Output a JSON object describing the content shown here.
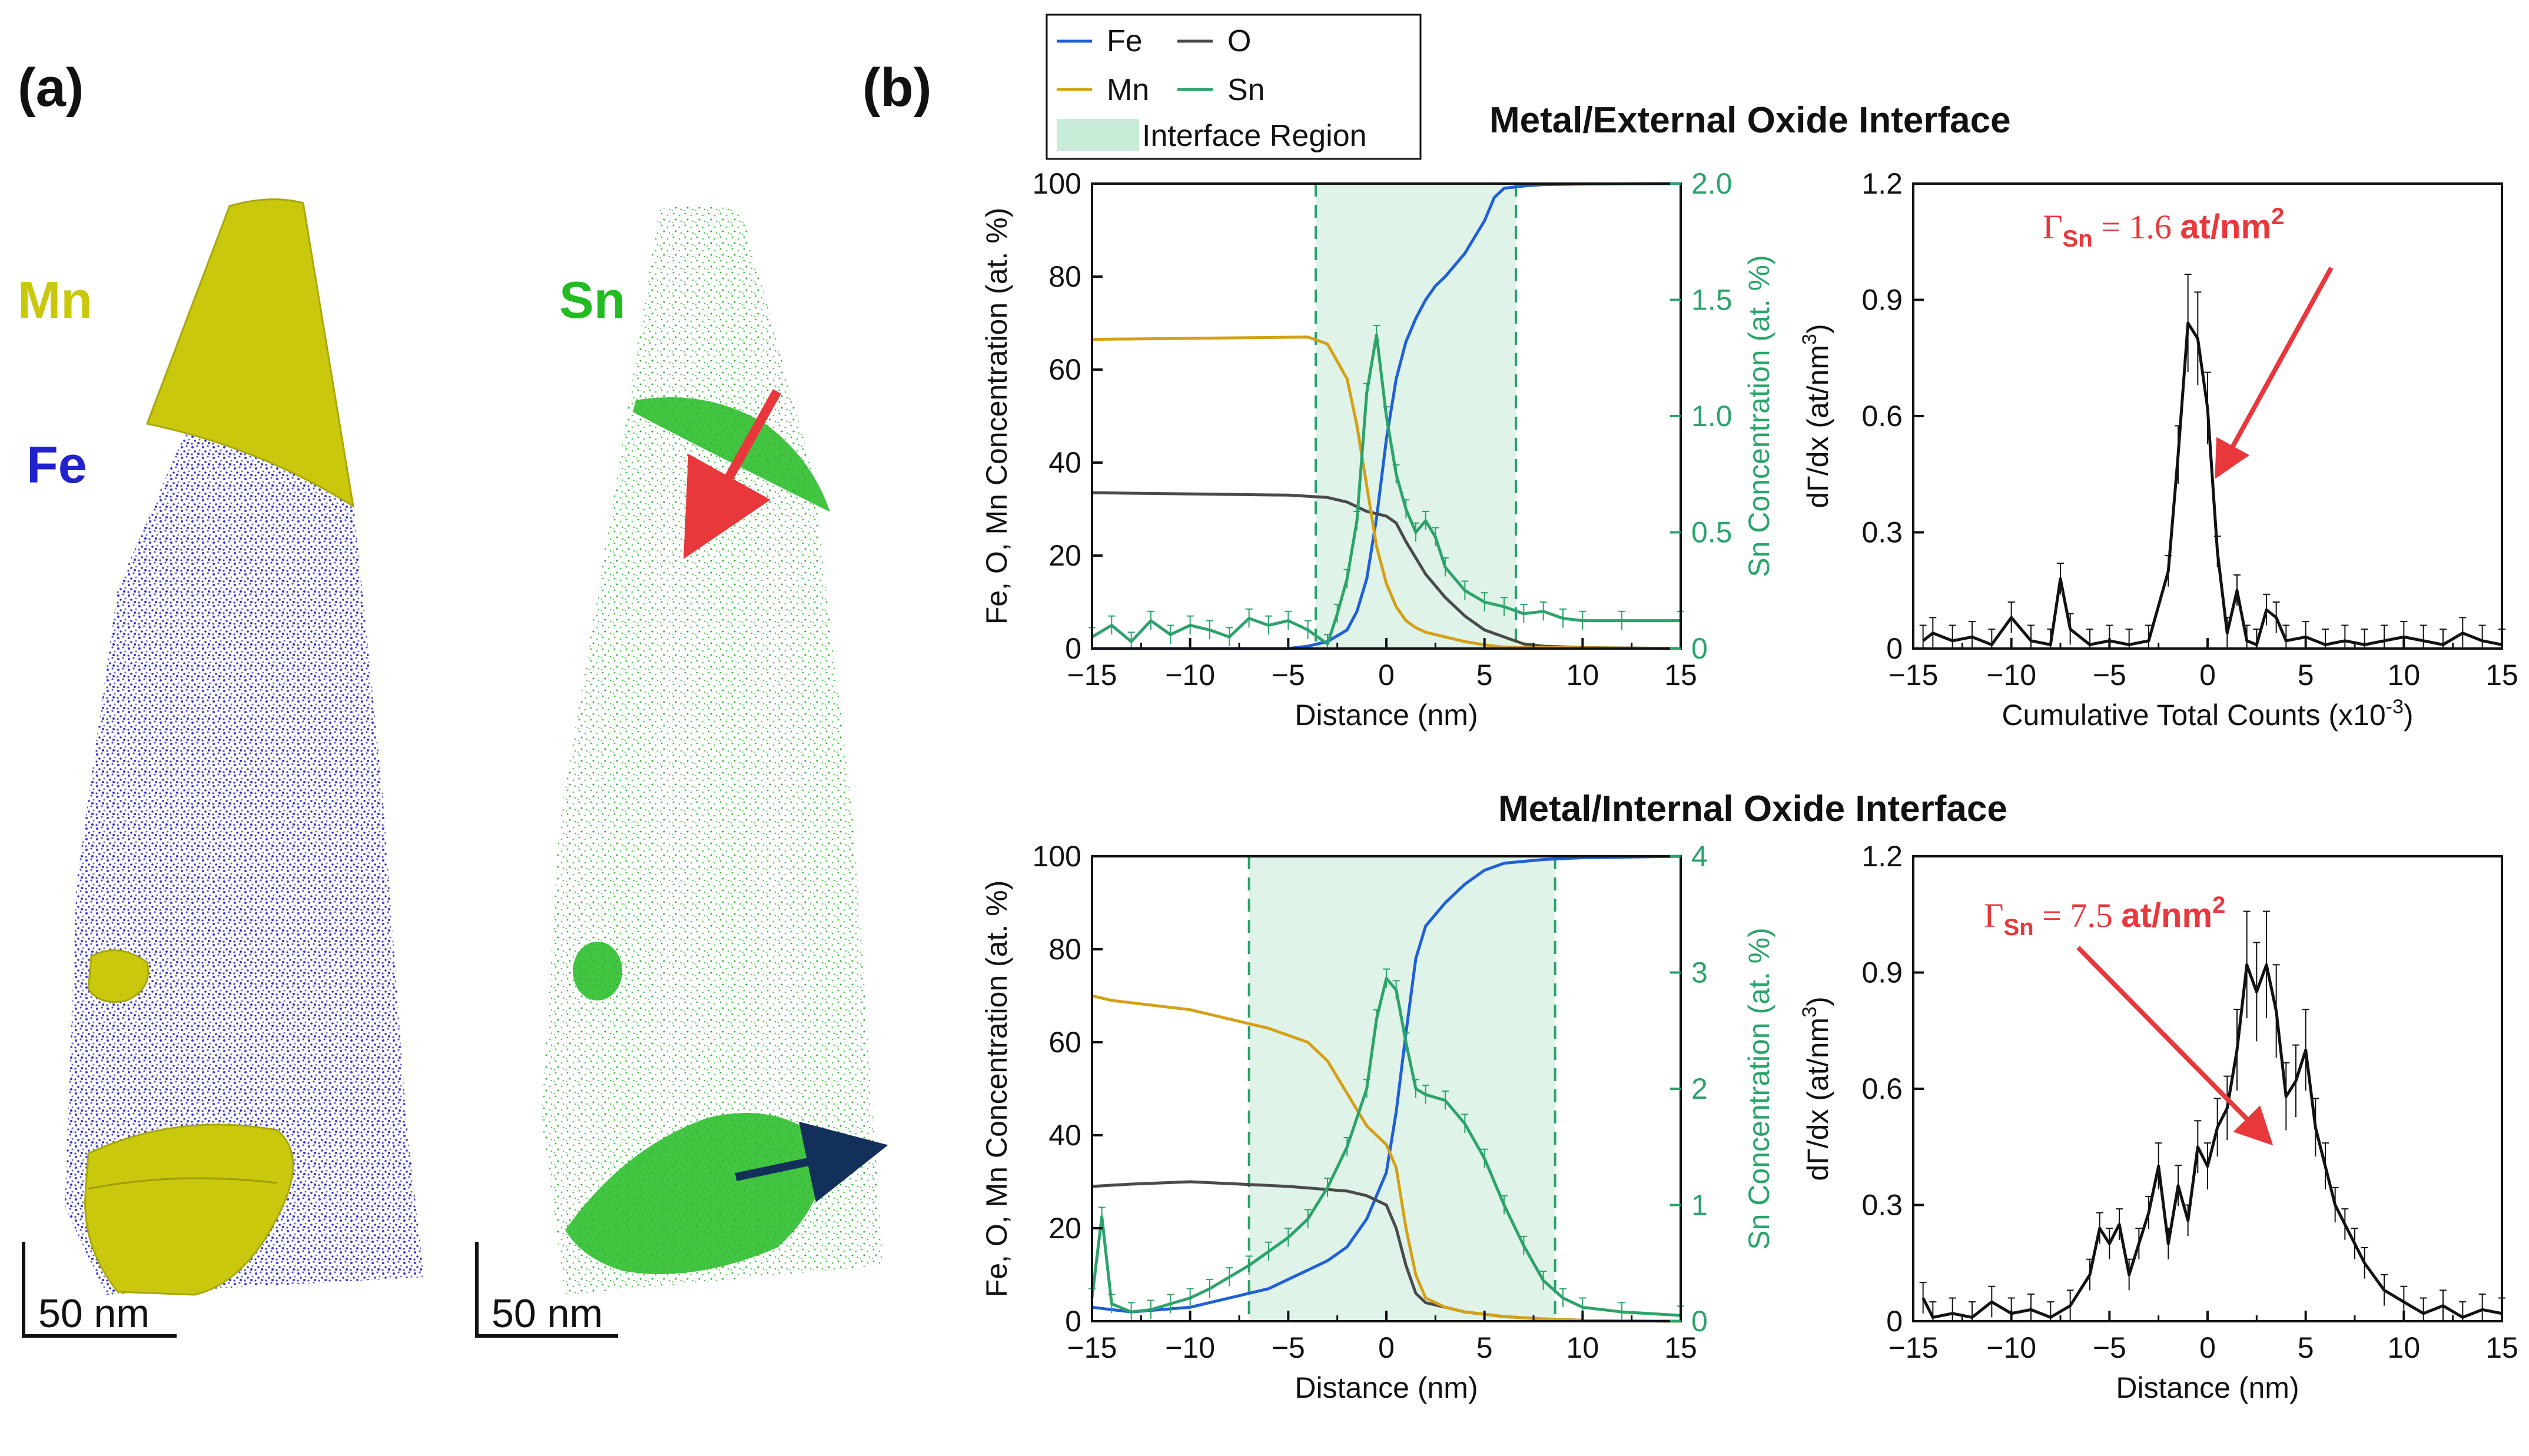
{
  "panels": {
    "a_label": "(a)",
    "b_label": "(b)",
    "mn_label": "Mn",
    "fe_label": "Fe",
    "sn_label": "Sn",
    "scale_left": "50 nm",
    "scale_right": "50 nm"
  },
  "colors": {
    "fe": "#1f5fd8",
    "o": "#4a4a4a",
    "mn": "#d4a017",
    "sn": "#2ba36a",
    "interface_fill": "#dff3e8",
    "annotation": "#e8383c",
    "mn_volume": "#c9c80c",
    "fe_atoms": "#2222cc",
    "sn_atoms": "#22bb22"
  },
  "legend": {
    "fe": "Fe",
    "o": "O",
    "mn": "Mn",
    "sn": "Sn",
    "interface": "Interface Region"
  },
  "headings": {
    "external": "Metal/External Oxide Interface",
    "internal": "Metal/Internal Oxide Interface"
  },
  "annotations": {
    "external": {
      "gamma": "Γ",
      "sub": "Sn",
      "eq": " = 1.6 ",
      "unit": "at/nm",
      "sup": "2"
    },
    "internal": {
      "gamma": "Γ",
      "sub": "Sn",
      "eq": " = 7.5 ",
      "unit": "at/nm",
      "sup": "2"
    }
  },
  "chart_data": [
    {
      "id": "ext_conc",
      "type": "line",
      "title": "",
      "xlabel": "Distance (nm)",
      "ylabel": "Fe, O, Mn Concentration (at. %)",
      "y2label": "Sn Concentration (at. %)",
      "xlim": [
        -15,
        15
      ],
      "ylim": [
        0,
        100
      ],
      "y2lim": [
        0,
        2.0
      ],
      "xticks": [
        -15,
        -10,
        -5,
        0,
        5,
        10,
        15
      ],
      "xtick_labels": [
        "−15",
        "−10",
        "−5",
        "0",
        "5",
        "10",
        "15"
      ],
      "yticks": [
        0,
        20,
        40,
        60,
        80,
        100
      ],
      "ytick_labels": [
        "0",
        "20",
        "40",
        "60",
        "80",
        "100"
      ],
      "y2ticks": [
        0,
        0.5,
        1.0,
        1.5,
        2.0
      ],
      "y2tick_labels": [
        "0",
        "0.5",
        "1.0",
        "1.5",
        "2.0"
      ],
      "interface_region": [
        -3.6,
        6.6
      ],
      "series": [
        {
          "name": "Fe",
          "axis": "y",
          "x": [
            -15,
            -5,
            -4,
            -3,
            -2,
            -1.5,
            -1,
            -0.5,
            0,
            0.5,
            1,
            1.5,
            2,
            2.5,
            3,
            4,
            5,
            5.5,
            6,
            7,
            8,
            10,
            15
          ],
          "y": [
            0,
            0,
            0.5,
            1.5,
            4,
            8,
            15,
            28,
            45,
            58,
            66,
            71,
            75,
            78,
            80,
            85,
            92,
            97,
            99,
            99.5,
            99.8,
            99.9,
            100
          ]
        },
        {
          "name": "O",
          "axis": "y",
          "x": [
            -15,
            -5,
            -3,
            -2,
            -1,
            0,
            0.5,
            1,
            2,
            3,
            4,
            5,
            6,
            7,
            8,
            10,
            15
          ],
          "y": [
            33.5,
            33,
            32.5,
            31.5,
            29.5,
            28.5,
            27,
            23,
            16,
            11,
            7,
            4,
            2.5,
            1,
            0.5,
            0.2,
            0
          ]
        },
        {
          "name": "Mn",
          "axis": "y",
          "x": [
            -15,
            -4,
            -3,
            -2,
            -1.5,
            -1,
            -0.5,
            0,
            0.5,
            1,
            1.5,
            2,
            3,
            4,
            5,
            6,
            15
          ],
          "y": [
            66.5,
            67,
            65.5,
            58,
            48,
            35,
            22,
            14,
            9,
            6,
            4.5,
            3.5,
            2.5,
            1.5,
            0.8,
            0.3,
            0
          ]
        },
        {
          "name": "Sn",
          "axis": "y2",
          "x": [
            -15,
            -14,
            -13,
            -12,
            -11,
            -10,
            -9,
            -8,
            -7,
            -6,
            -5,
            -4,
            -3,
            -2.5,
            -2,
            -1.5,
            -1,
            -0.5,
            0,
            0.5,
            1,
            1.5,
            2,
            2.5,
            3,
            4,
            5,
            6,
            7,
            8,
            9,
            10,
            12,
            15
          ],
          "y": [
            0.05,
            0.1,
            0.03,
            0.12,
            0.06,
            0.1,
            0.08,
            0.05,
            0.13,
            0.1,
            0.12,
            0.08,
            0.02,
            0.15,
            0.3,
            0.55,
            1.1,
            1.35,
            1.0,
            0.75,
            0.6,
            0.5,
            0.55,
            0.48,
            0.35,
            0.25,
            0.2,
            0.18,
            0.15,
            0.16,
            0.13,
            0.12,
            0.12,
            0.12
          ]
        }
      ]
    },
    {
      "id": "ext_deriv",
      "type": "line",
      "title": "",
      "xlabel": "Cumulative Total Counts (x10",
      "xlabel_sup": "-3",
      "xlabel_end": ")",
      "ylabel": "dΓ/dx (at/nm",
      "ylabel_sup": "3",
      "ylabel_end": ")",
      "xlim": [
        -15,
        15
      ],
      "ylim": [
        0,
        1.2
      ],
      "xticks": [
        -15,
        -10,
        -5,
        0,
        5,
        10,
        15
      ],
      "xtick_labels": [
        "−15",
        "−10",
        "−5",
        "0",
        "5",
        "10",
        "15"
      ],
      "yticks": [
        0,
        0.3,
        0.6,
        0.9,
        1.2
      ],
      "ytick_labels": [
        "0",
        "0.3",
        "0.6",
        "0.9",
        "1.2"
      ],
      "series": [
        {
          "name": "dGamma/dx",
          "x": [
            -14.5,
            -14,
            -13,
            -12,
            -11,
            -10,
            -9,
            -8,
            -7.5,
            -7,
            -6,
            -5,
            -4,
            -3,
            -2,
            -1.5,
            -1,
            -0.5,
            0,
            0.5,
            1,
            1.5,
            2,
            2.5,
            3,
            3.5,
            4,
            5,
            6,
            7,
            8,
            9,
            10,
            11,
            12,
            13,
            14,
            15
          ],
          "y": [
            0.02,
            0.04,
            0.02,
            0.03,
            0.01,
            0.08,
            0.02,
            0.01,
            0.18,
            0.05,
            0.01,
            0.02,
            0.01,
            0.02,
            0.2,
            0.5,
            0.84,
            0.8,
            0.62,
            0.25,
            0.04,
            0.15,
            0.02,
            0.01,
            0.1,
            0.08,
            0.02,
            0.03,
            0.01,
            0.02,
            0.01,
            0.02,
            0.03,
            0.02,
            0.01,
            0.04,
            0.02,
            0.01
          ]
        }
      ]
    },
    {
      "id": "int_conc",
      "type": "line",
      "title": "",
      "xlabel": "Distance (nm)",
      "ylabel": "Fe, O, Mn Concentration (at. %)",
      "y2label": "Sn Concentration (at. %)",
      "xlim": [
        -15,
        15
      ],
      "ylim": [
        0,
        100
      ],
      "y2lim": [
        0,
        4
      ],
      "xticks": [
        -15,
        -10,
        -5,
        0,
        5,
        10,
        15
      ],
      "xtick_labels": [
        "−15",
        "−10",
        "−5",
        "0",
        "5",
        "10",
        "15"
      ],
      "yticks": [
        0,
        20,
        40,
        60,
        80,
        100
      ],
      "ytick_labels": [
        "0",
        "20",
        "40",
        "60",
        "80",
        "100"
      ],
      "y2ticks": [
        0,
        1,
        2,
        3,
        4
      ],
      "y2tick_labels": [
        "0",
        "1",
        "2",
        "3",
        "4"
      ],
      "interface_region": [
        -7,
        8.6
      ],
      "series": [
        {
          "name": "Fe",
          "axis": "y",
          "x": [
            -15,
            -13,
            -10,
            -8,
            -6,
            -5,
            -4,
            -3,
            -2,
            -1,
            0,
            0.5,
            1,
            1.5,
            2,
            3,
            4,
            5,
            6,
            8,
            10,
            15
          ],
          "y": [
            3,
            2,
            3,
            5,
            7,
            9,
            11,
            13,
            16,
            22,
            32,
            45,
            62,
            78,
            85,
            90,
            94,
            97,
            98.5,
            99.3,
            99.7,
            100
          ]
        },
        {
          "name": "O",
          "axis": "y",
          "x": [
            -15,
            -13,
            -10,
            -5,
            -2,
            -1,
            0,
            0.5,
            1,
            1.5,
            2,
            3,
            4,
            5,
            6,
            8,
            10,
            15
          ],
          "y": [
            29,
            29.5,
            30,
            29,
            28,
            27,
            25,
            20,
            12,
            6,
            4,
            3,
            2,
            1.5,
            1,
            0.5,
            0.2,
            0
          ]
        },
        {
          "name": "Mn",
          "axis": "y",
          "x": [
            -15,
            -14,
            -12,
            -10,
            -8,
            -6,
            -4,
            -3,
            -2,
            -1,
            0,
            0.5,
            1,
            1.5,
            2,
            3,
            4,
            6,
            8,
            10,
            15
          ],
          "y": [
            70,
            69,
            68,
            67,
            65,
            63,
            60,
            56,
            49,
            42,
            38,
            33,
            20,
            10,
            5,
            3,
            2,
            1,
            0.5,
            0.2,
            0
          ]
        },
        {
          "name": "Sn",
          "axis": "y2",
          "x": [
            -15,
            -14.5,
            -14,
            -13,
            -12,
            -11,
            -10,
            -9,
            -8,
            -7,
            -6,
            -5,
            -4,
            -3,
            -2,
            -1,
            -0.5,
            0,
            0.5,
            1,
            1.5,
            2,
            3,
            4,
            5,
            6,
            7,
            8,
            9,
            10,
            12,
            15
          ],
          "y": [
            0.2,
            0.9,
            0.15,
            0.08,
            0.1,
            0.15,
            0.2,
            0.28,
            0.38,
            0.48,
            0.6,
            0.72,
            0.88,
            1.15,
            1.5,
            2.0,
            2.6,
            2.95,
            2.85,
            2.4,
            2.0,
            1.95,
            1.9,
            1.7,
            1.4,
            1.0,
            0.65,
            0.35,
            0.2,
            0.12,
            0.08,
            0.05
          ]
        }
      ]
    },
    {
      "id": "int_deriv",
      "type": "line",
      "title": "",
      "xlabel": "Distance (nm)",
      "ylabel": "dΓ/dx (at/nm",
      "ylabel_sup": "3",
      "ylabel_end": ")",
      "xlim": [
        -15,
        15
      ],
      "ylim": [
        0,
        1.2
      ],
      "xticks": [
        -15,
        -10,
        -5,
        0,
        5,
        10,
        15
      ],
      "xtick_labels": [
        "−15",
        "−10",
        "−5",
        "0",
        "5",
        "10",
        "15"
      ],
      "yticks": [
        0,
        0.3,
        0.6,
        0.9,
        1.2
      ],
      "ytick_labels": [
        "0",
        "0.3",
        "0.6",
        "0.9",
        "1.2"
      ],
      "series": [
        {
          "name": "dGamma/dx",
          "x": [
            -14.5,
            -14,
            -13,
            -12,
            -11,
            -10,
            -9,
            -8,
            -7,
            -6,
            -5.5,
            -5,
            -4.5,
            -4,
            -3.5,
            -3,
            -2.5,
            -2,
            -1.5,
            -1,
            -0.5,
            0,
            0.5,
            1,
            1.5,
            2,
            2.5,
            3,
            3.5,
            4,
            4.5,
            5,
            5.5,
            6,
            6.5,
            7,
            7.5,
            8,
            9,
            10,
            11,
            12,
            13,
            14,
            15
          ],
          "y": [
            0.06,
            0.01,
            0.02,
            0.01,
            0.05,
            0.02,
            0.03,
            0.01,
            0.04,
            0.12,
            0.24,
            0.2,
            0.25,
            0.12,
            0.2,
            0.28,
            0.4,
            0.2,
            0.35,
            0.26,
            0.45,
            0.4,
            0.5,
            0.55,
            0.7,
            0.92,
            0.85,
            0.92,
            0.8,
            0.58,
            0.62,
            0.7,
            0.5,
            0.4,
            0.3,
            0.25,
            0.2,
            0.15,
            0.08,
            0.05,
            0.02,
            0.04,
            0.01,
            0.03,
            0.02
          ]
        }
      ]
    }
  ]
}
